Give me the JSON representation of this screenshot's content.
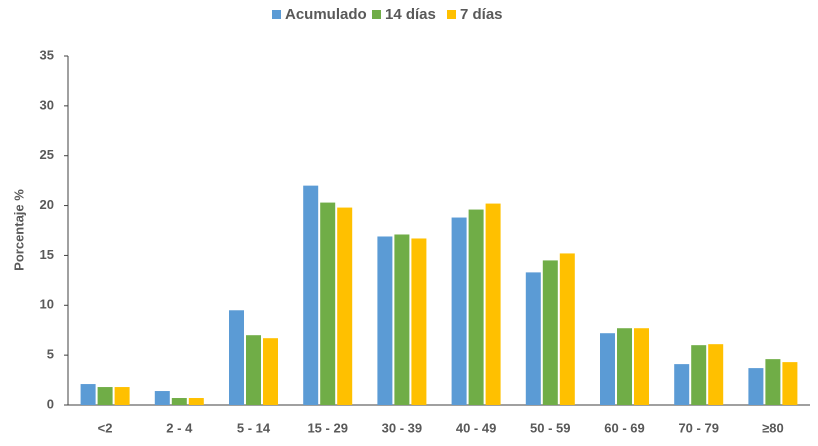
{
  "chart_data": {
    "type": "bar",
    "y_label": "Porcentaje %",
    "categories": [
      "<2",
      "2 - 4",
      "5 - 14",
      "15 - 29",
      "30 - 39",
      "40 - 49",
      "50 - 59",
      "60 - 69",
      "70 - 79",
      "≥80"
    ],
    "series": [
      {
        "name": "Acumulado",
        "color": "#5b9bd5",
        "values": [
          2.1,
          1.4,
          9.5,
          22.0,
          16.9,
          18.8,
          13.3,
          7.2,
          4.1,
          3.7
        ]
      },
      {
        "name": "14 días",
        "color": "#70ad47",
        "values": [
          1.8,
          0.7,
          7.0,
          20.3,
          17.1,
          19.6,
          14.5,
          7.7,
          6.0,
          4.6
        ]
      },
      {
        "name": "7 días",
        "color": "#ffc000",
        "values": [
          1.8,
          0.7,
          6.7,
          19.8,
          16.7,
          20.2,
          15.2,
          7.7,
          6.1,
          4.3
        ]
      }
    ],
    "ylim": [
      0,
      35
    ],
    "yticks": [
      0,
      5,
      10,
      15,
      20,
      25,
      30,
      35
    ],
    "grid": false,
    "legend": "top"
  }
}
